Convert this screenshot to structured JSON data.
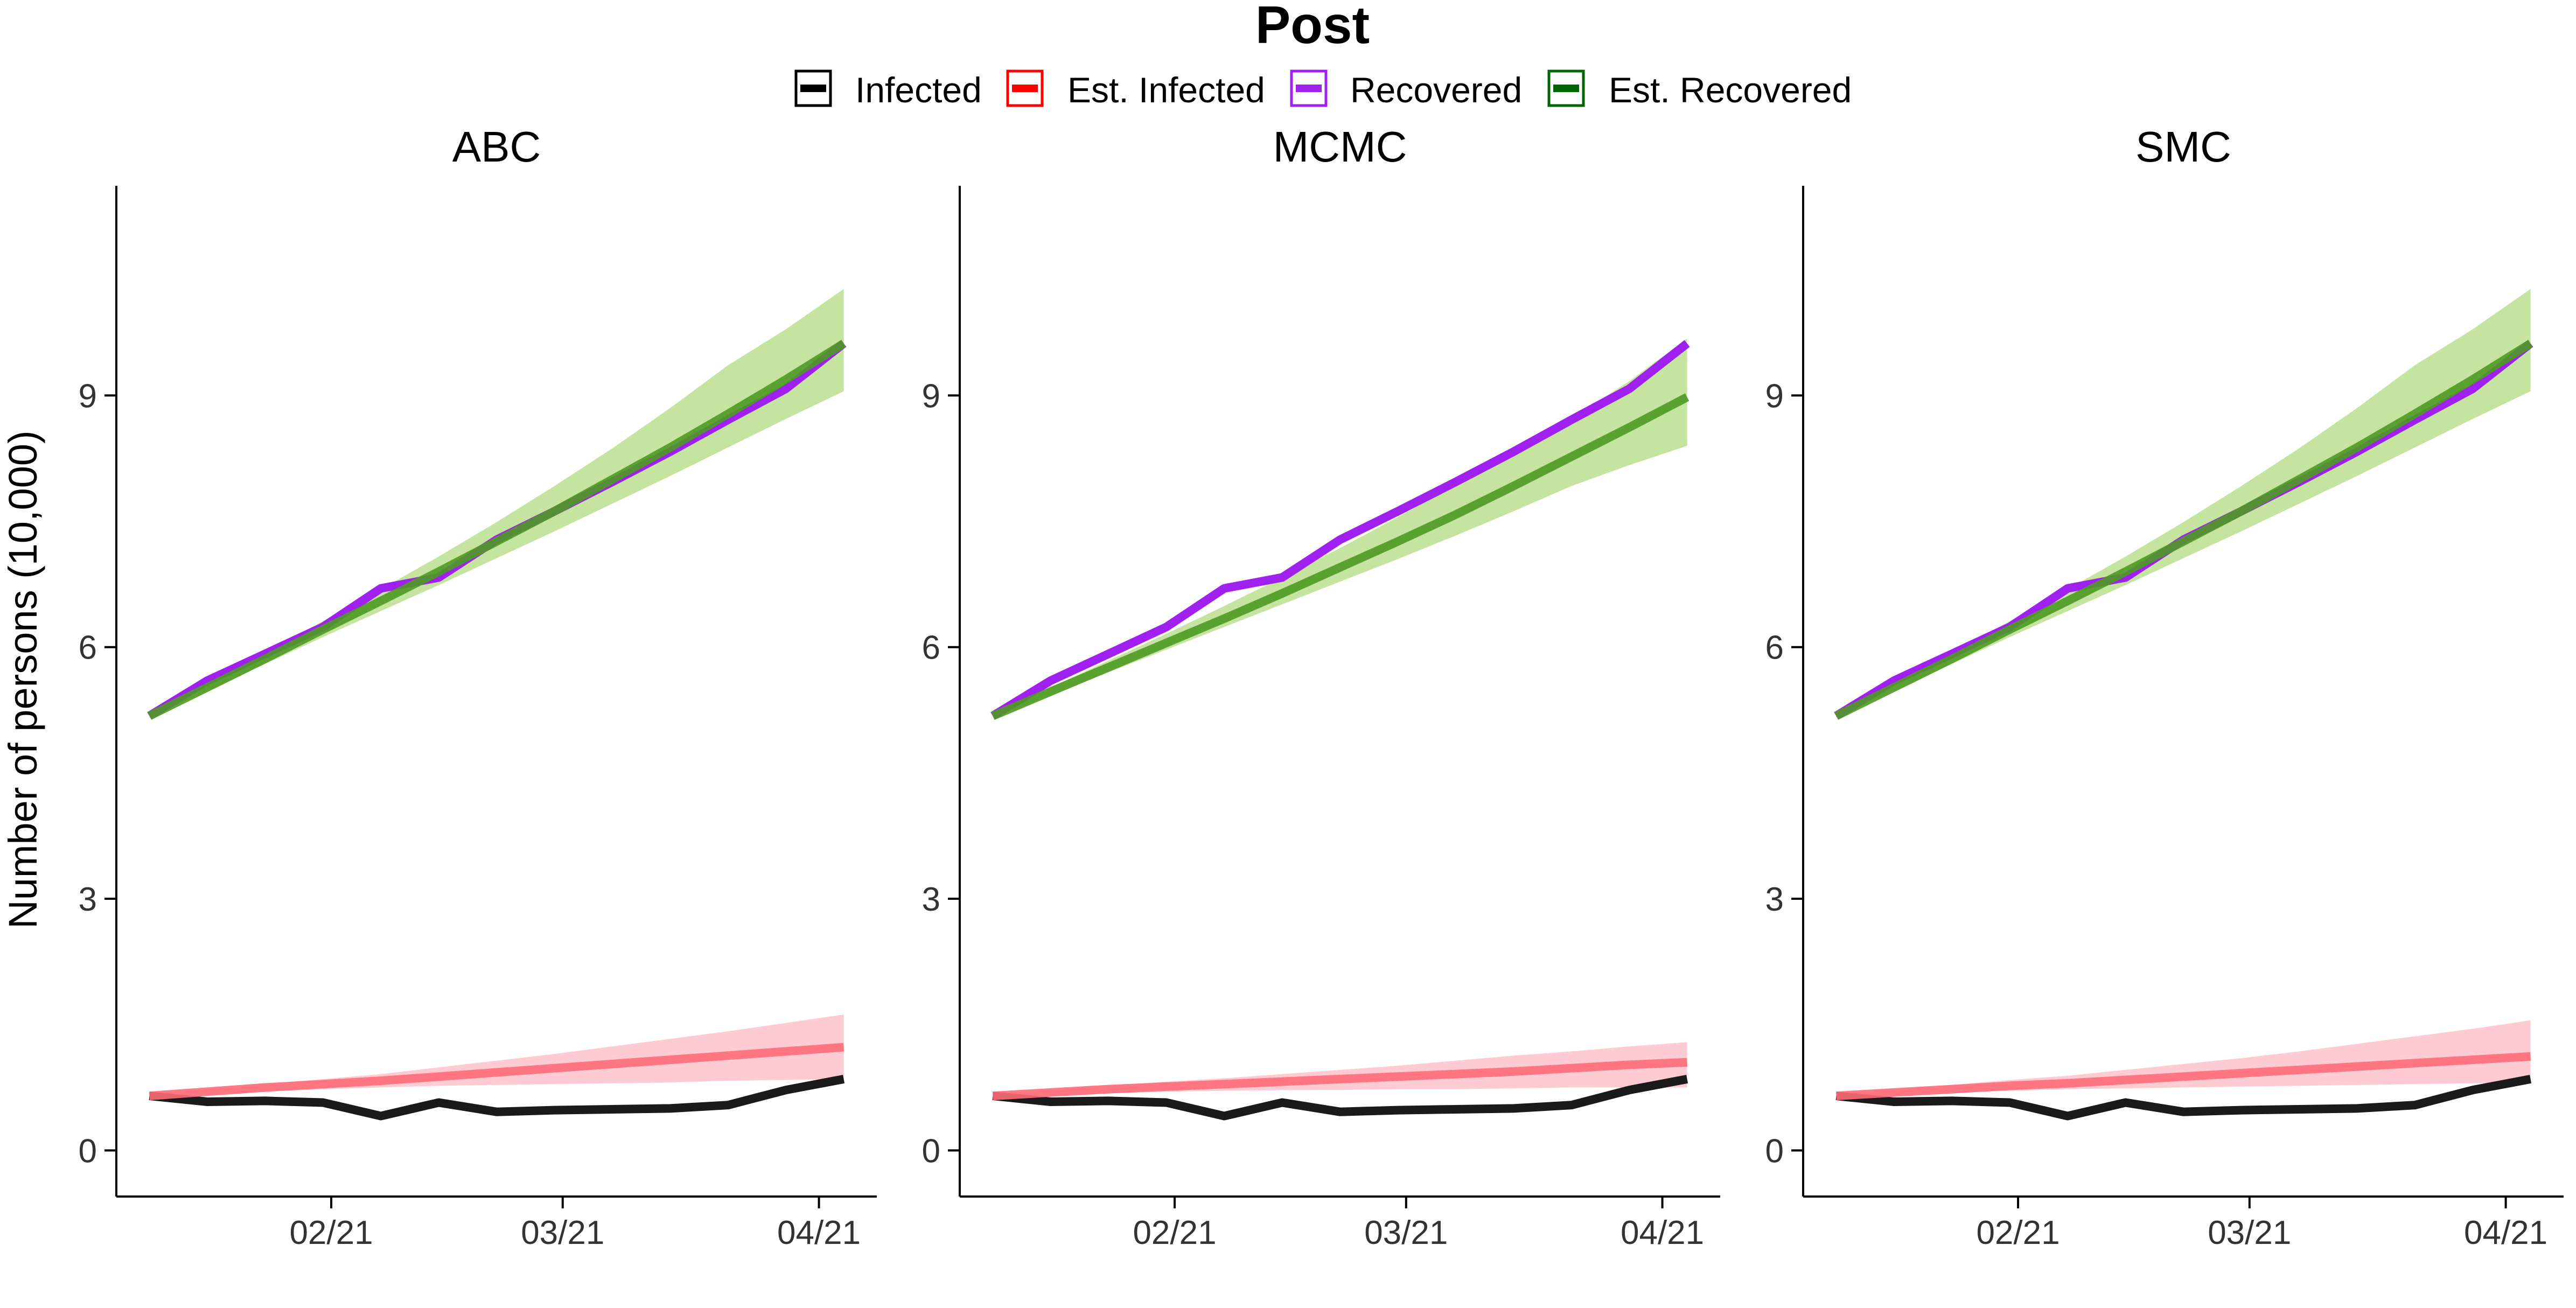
{
  "figure": {
    "title": "Post",
    "ylabel": "Number of persons (10,000)"
  },
  "legend": {
    "placement": "top",
    "entries": [
      {
        "label": "Infected",
        "color": "#000000"
      },
      {
        "label": "Est. Infected",
        "color": "#ff0000"
      },
      {
        "label": "Recovered",
        "color": "#a020f0"
      },
      {
        "label": "Est. Recovered",
        "color": "#006400"
      }
    ]
  },
  "chart_data": [
    {
      "type": "line",
      "title": "ABC",
      "xlabel": "",
      "ylabel": "Number of persons (10,000)",
      "x_tick_labels": [
        "02/21",
        "03/21",
        "04/21"
      ],
      "x_tick_dates": [
        "2021-02-01",
        "2021-03-01",
        "2021-04-01"
      ],
      "y_ticks": [
        0,
        3,
        6,
        9
      ],
      "ylim": [
        -0.55,
        11.5
      ],
      "xlim": [
        "2021-01-06",
        "2021-04-08"
      ],
      "grid": false,
      "x": [
        "2021-01-10",
        "2021-01-17",
        "2021-01-24",
        "2021-01-31",
        "2021-02-07",
        "2021-02-14",
        "2021-02-21",
        "2021-02-28",
        "2021-03-07",
        "2021-03-14",
        "2021-03-21",
        "2021-03-28",
        "2021-04-04"
      ],
      "series": [
        {
          "name": "Infected",
          "color": "#1a1a1a",
          "values": [
            0.65,
            0.58,
            0.59,
            0.57,
            0.41,
            0.57,
            0.46,
            0.48,
            0.49,
            0.5,
            0.54,
            0.72,
            0.85
          ]
        },
        {
          "name": "Est. Infected",
          "color": "#ff6b78",
          "values": [
            0.65,
            0.7,
            0.75,
            0.79,
            0.83,
            0.88,
            0.93,
            0.98,
            1.03,
            1.08,
            1.13,
            1.18,
            1.23
          ]
        },
        {
          "name": "Est. Infected band",
          "color": "#ffc8d0",
          "lower": [
            0.63,
            0.67,
            0.7,
            0.73,
            0.75,
            0.77,
            0.78,
            0.79,
            0.8,
            0.81,
            0.83,
            0.84,
            0.85
          ],
          "upper": [
            0.68,
            0.73,
            0.79,
            0.85,
            0.91,
            0.99,
            1.07,
            1.15,
            1.24,
            1.33,
            1.42,
            1.52,
            1.62
          ]
        },
        {
          "name": "Recovered",
          "color": "#a020f0",
          "values": [
            5.18,
            5.6,
            5.92,
            6.24,
            6.7,
            6.83,
            7.28,
            7.62,
            7.97,
            8.33,
            8.71,
            9.08,
            9.62
          ]
        },
        {
          "name": "Est. Recovered",
          "color": "#4e9a22",
          "values": [
            5.18,
            5.52,
            5.86,
            6.21,
            6.55,
            6.9,
            7.26,
            7.62,
            8.0,
            8.38,
            8.78,
            9.19,
            9.62
          ]
        },
        {
          "name": "Est. Recovered band",
          "color": "#c2e39a",
          "lower": [
            5.16,
            5.48,
            5.8,
            6.12,
            6.43,
            6.74,
            7.06,
            7.38,
            7.71,
            8.04,
            8.38,
            8.72,
            9.05
          ],
          "upper": [
            5.2,
            5.56,
            5.93,
            6.31,
            6.69,
            7.08,
            7.49,
            7.92,
            8.37,
            8.85,
            9.36,
            9.79,
            10.27
          ]
        }
      ]
    },
    {
      "type": "line",
      "title": "MCMC",
      "xlabel": "",
      "ylabel": "",
      "x_tick_labels": [
        "02/21",
        "03/21",
        "04/21"
      ],
      "x_tick_dates": [
        "2021-02-01",
        "2021-03-01",
        "2021-04-01"
      ],
      "y_ticks": [
        0,
        3,
        6,
        9
      ],
      "ylim": [
        -0.55,
        11.5
      ],
      "xlim": [
        "2021-01-06",
        "2021-04-08"
      ],
      "grid": false,
      "x": [
        "2021-01-10",
        "2021-01-17",
        "2021-01-24",
        "2021-01-31",
        "2021-02-07",
        "2021-02-14",
        "2021-02-21",
        "2021-02-28",
        "2021-03-07",
        "2021-03-14",
        "2021-03-21",
        "2021-03-28",
        "2021-04-04"
      ],
      "series": [
        {
          "name": "Infected",
          "color": "#1a1a1a",
          "values": [
            0.65,
            0.58,
            0.59,
            0.57,
            0.41,
            0.57,
            0.46,
            0.48,
            0.49,
            0.5,
            0.54,
            0.72,
            0.85
          ]
        },
        {
          "name": "Est. Infected",
          "color": "#ff6b78",
          "values": [
            0.65,
            0.69,
            0.73,
            0.76,
            0.79,
            0.82,
            0.85,
            0.88,
            0.91,
            0.94,
            0.98,
            1.02,
            1.05
          ]
        },
        {
          "name": "Est. Infected band",
          "color": "#ffc8d0",
          "lower": [
            0.63,
            0.66,
            0.68,
            0.7,
            0.71,
            0.72,
            0.72,
            0.73,
            0.73,
            0.74,
            0.75,
            0.75,
            0.75
          ],
          "upper": [
            0.67,
            0.72,
            0.77,
            0.82,
            0.86,
            0.91,
            0.96,
            1.01,
            1.07,
            1.13,
            1.18,
            1.24,
            1.29
          ]
        },
        {
          "name": "Recovered",
          "color": "#a020f0",
          "values": [
            5.18,
            5.6,
            5.92,
            6.24,
            6.7,
            6.83,
            7.28,
            7.62,
            7.97,
            8.33,
            8.71,
            9.08,
            9.62
          ]
        },
        {
          "name": "Est. Recovered",
          "color": "#4e9a22",
          "values": [
            5.18,
            5.47,
            5.76,
            6.05,
            6.34,
            6.64,
            6.95,
            7.26,
            7.58,
            7.92,
            8.27,
            8.62,
            8.98
          ]
        },
        {
          "name": "Est. Recovered band",
          "color": "#c2e39a",
          "lower": [
            5.16,
            5.43,
            5.7,
            5.97,
            6.24,
            6.51,
            6.78,
            7.05,
            7.33,
            7.62,
            7.92,
            8.17,
            8.4
          ],
          "upper": [
            5.2,
            5.52,
            5.84,
            6.16,
            6.49,
            6.83,
            7.18,
            7.55,
            7.93,
            8.32,
            8.73,
            9.17,
            9.68
          ]
        }
      ]
    },
    {
      "type": "line",
      "title": "SMC",
      "xlabel": "",
      "ylabel": "",
      "x_tick_labels": [
        "02/21",
        "03/21",
        "04/21"
      ],
      "x_tick_dates": [
        "2021-02-01",
        "2021-03-01",
        "2021-04-01"
      ],
      "y_ticks": [
        0,
        3,
        6,
        9
      ],
      "ylim": [
        -0.55,
        11.5
      ],
      "xlim": [
        "2021-01-06",
        "2021-04-08"
      ],
      "grid": false,
      "x": [
        "2021-01-10",
        "2021-01-17",
        "2021-01-24",
        "2021-01-31",
        "2021-02-07",
        "2021-02-14",
        "2021-02-21",
        "2021-02-28",
        "2021-03-07",
        "2021-03-14",
        "2021-03-21",
        "2021-03-28",
        "2021-04-04"
      ],
      "series": [
        {
          "name": "Infected",
          "color": "#1a1a1a",
          "values": [
            0.65,
            0.58,
            0.59,
            0.57,
            0.41,
            0.57,
            0.46,
            0.48,
            0.49,
            0.5,
            0.54,
            0.72,
            0.85
          ]
        },
        {
          "name": "Est. Infected",
          "color": "#ff6b78",
          "values": [
            0.65,
            0.69,
            0.73,
            0.77,
            0.8,
            0.84,
            0.88,
            0.92,
            0.96,
            1.0,
            1.04,
            1.08,
            1.12
          ]
        },
        {
          "name": "Est. Infected band",
          "color": "#ffc8d0",
          "lower": [
            0.63,
            0.66,
            0.69,
            0.71,
            0.73,
            0.74,
            0.75,
            0.76,
            0.77,
            0.78,
            0.79,
            0.8,
            0.81
          ],
          "upper": [
            0.68,
            0.73,
            0.78,
            0.84,
            0.89,
            0.96,
            1.03,
            1.1,
            1.18,
            1.27,
            1.36,
            1.45,
            1.55
          ]
        },
        {
          "name": "Recovered",
          "color": "#a020f0",
          "values": [
            5.18,
            5.6,
            5.92,
            6.24,
            6.7,
            6.83,
            7.28,
            7.62,
            7.97,
            8.33,
            8.71,
            9.08,
            9.62
          ]
        },
        {
          "name": "Est. Recovered",
          "color": "#4e9a22",
          "values": [
            5.18,
            5.52,
            5.86,
            6.21,
            6.55,
            6.9,
            7.26,
            7.62,
            8.0,
            8.38,
            8.78,
            9.19,
            9.62
          ]
        },
        {
          "name": "Est. Recovered band",
          "color": "#c2e39a",
          "lower": [
            5.16,
            5.48,
            5.8,
            6.12,
            6.43,
            6.74,
            7.06,
            7.38,
            7.71,
            8.04,
            8.38,
            8.72,
            9.05
          ],
          "upper": [
            5.2,
            5.56,
            5.93,
            6.31,
            6.69,
            7.08,
            7.49,
            7.92,
            8.37,
            8.85,
            9.36,
            9.79,
            10.27
          ]
        }
      ]
    }
  ]
}
